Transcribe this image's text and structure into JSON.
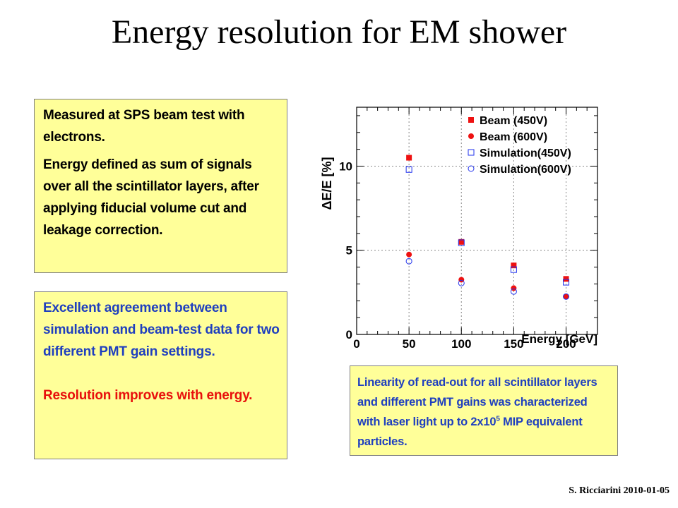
{
  "slide": {
    "title": "Energy resolution for EM shower",
    "footer": "S. Ricciarini 2010-01-05"
  },
  "box_measured": {
    "p1": "Measured at SPS beam test with electrons.",
    "p2": "Energy defined as sum of signals over all the scintillator layers, after applying fiducial volume cut and leakage correction."
  },
  "box_agreement": {
    "p1": "Excellent agreement between simulation and beam-test data for two different PMT gain settings.",
    "p2": "Resolution improves with energy."
  },
  "box_linearity": {
    "text_before": "Linearity of read-out for all scintillator layers and different PMT gains was characterized with laser light up to 2x10",
    "sup": "5",
    "text_after": " MIP equivalent particles."
  },
  "colors": {
    "beam": "#ee1111",
    "simulation": "#2233ee",
    "box_fill": "#ffff99",
    "blue_text": "#1f3fbf",
    "red_text": "#e8100c"
  },
  "chart_data": {
    "type": "scatter",
    "xlabel": "Energy [GeV]",
    "ylabel": "ΔE/E [%]",
    "xlim": [
      0,
      230
    ],
    "ylim": [
      0,
      13.5
    ],
    "x_ticks": [
      0,
      50,
      100,
      150,
      200
    ],
    "y_ticks": [
      0,
      5,
      10
    ],
    "grid": true,
    "legend_position": "top-right",
    "series": [
      {
        "name": "Beam (450V)",
        "marker": "filled-square",
        "color": "#ee1111",
        "x": [
          50,
          100,
          150,
          200
        ],
        "y": [
          10.5,
          5.5,
          4.1,
          3.3
        ]
      },
      {
        "name": "Beam (600V)",
        "marker": "filled-circle",
        "color": "#ee1111",
        "x": [
          50,
          100,
          150,
          200
        ],
        "y": [
          4.75,
          3.25,
          2.75,
          2.25
        ]
      },
      {
        "name": "Simulation(450V)",
        "marker": "open-square",
        "color": "#2233ee",
        "x": [
          50,
          100,
          150,
          200
        ],
        "y": [
          9.8,
          5.45,
          3.85,
          3.1
        ]
      },
      {
        "name": "Simulation(600V)",
        "marker": "open-circle",
        "color": "#2233ee",
        "x": [
          50,
          100,
          150,
          200
        ],
        "y": [
          4.35,
          3.05,
          2.55,
          2.25
        ]
      }
    ]
  }
}
